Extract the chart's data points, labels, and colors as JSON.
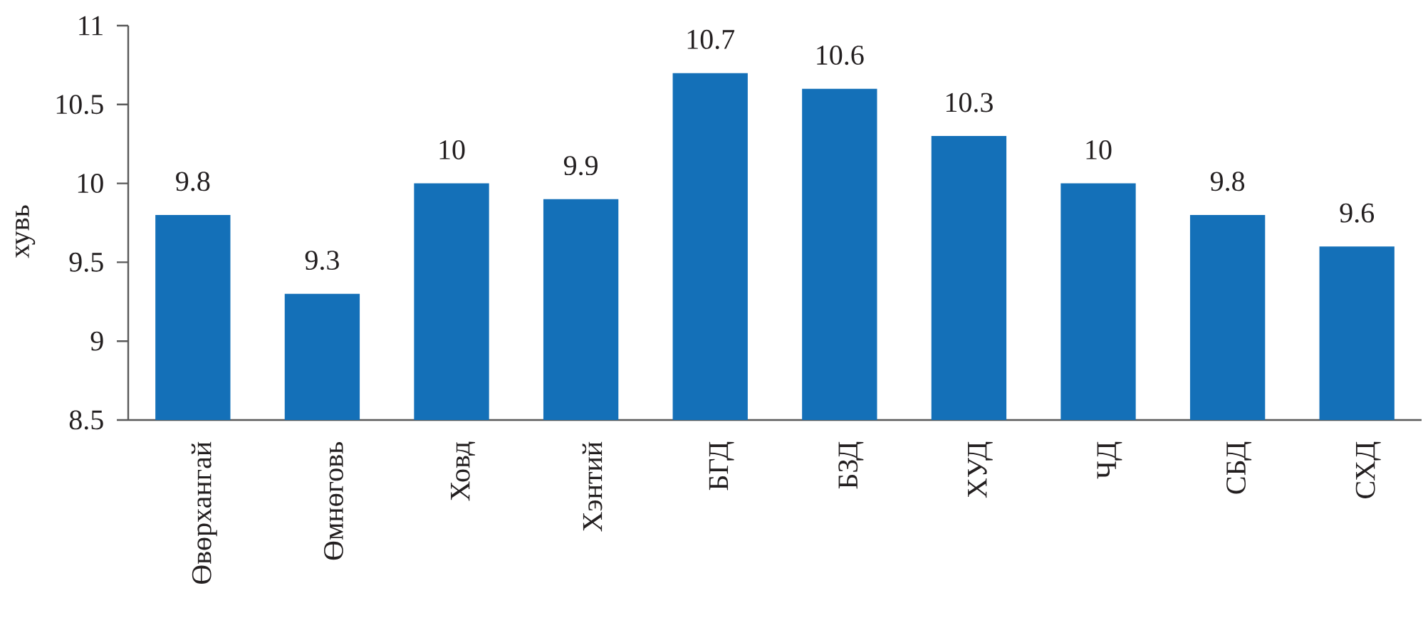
{
  "chart_data": {
    "type": "bar",
    "ylabel": "хувь",
    "categories": [
      "Өвөрхангай",
      "Өмнөговь",
      "Ховд",
      "Хэнтий",
      "БГД",
      "БЗД",
      "ХУД",
      "ЧД",
      "СБД",
      "СХД"
    ],
    "values": [
      9.8,
      9.3,
      10,
      9.9,
      10.7,
      10.6,
      10.3,
      10,
      9.8,
      9.6
    ],
    "color": "#1470b8",
    "ylim": [
      8.5,
      11
    ],
    "yticks": [
      8.5,
      9,
      9.5,
      10,
      10.5,
      11
    ],
    "data_labels": true
  }
}
